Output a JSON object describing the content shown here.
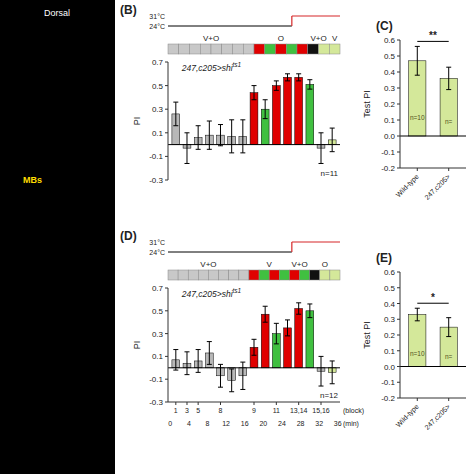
{
  "chart_data": [
    {
      "type": "bar",
      "title": "(B)",
      "ylabel": "PI",
      "categories": [
        null,
        null,
        null,
        null,
        null,
        null,
        null,
        null,
        null,
        null,
        null,
        null,
        null,
        null,
        null
      ],
      "values": [
        0.26,
        -0.03,
        0.06,
        0.08,
        0.08,
        0.07,
        0.07,
        0.44,
        0.3,
        0.5,
        0.57,
        0.57,
        0.51,
        -0.03,
        0.04
      ],
      "errors": [
        0.1,
        0.13,
        0.1,
        0.12,
        0.09,
        0.14,
        0.14,
        0.06,
        0.08,
        0.04,
        0.03,
        0.03,
        0.04,
        0.13,
        0.1
      ],
      "colors": [
        "#b8b8b8",
        "#b8b8b8",
        "#b8b8b8",
        "#b8b8b8",
        "#b8b8b8",
        "#b8b8b8",
        "#b8b8b8",
        "#e00000",
        "#40c040",
        "#e00000",
        "#e00000",
        "#e00000",
        "#40c040",
        "#b8b8b8",
        "#d4e89a"
      ],
      "ylim": [
        -0.3,
        0.7
      ],
      "yticks": [
        -0.3,
        -0.1,
        0.1,
        0.3,
        0.5,
        0.7
      ],
      "tick_labels": "y",
      "genotype": "247,c205>shi",
      "genotype_super": "ts1",
      "n_label": "n=11",
      "protocol": {
        "colors": [
          "#c8c8c8",
          "#c8c8c8",
          "#c8c8c8",
          "#c8c8c8",
          "#c8c8c8",
          "#c8c8c8",
          "#c8c8c8",
          "#c8c8c8",
          "#e00000",
          "#40c040",
          "#e00000",
          "#40c040",
          "#e00000",
          "#111111",
          "#d4e89a",
          "#d4e89a"
        ],
        "segments": [
          {
            "text": "V+O",
            "span": [
              0,
              8
            ]
          },
          {
            "text": "O",
            "span": [
              8,
              13
            ]
          },
          {
            "text": "V+O",
            "span": [
              13,
              15
            ]
          },
          {
            "text": "V",
            "span": [
              15,
              16
            ]
          }
        ]
      },
      "temperature": {
        "high": "31°C",
        "low": "24°C",
        "switch": 0.72
      }
    },
    {
      "type": "bar",
      "title": "(D)",
      "ylabel": "PI",
      "xlabel": "(block)",
      "categories": [
        "1",
        "3",
        "5",
        null,
        "8",
        null,
        null,
        "9",
        null,
        "11",
        null,
        "13,14",
        null,
        "15,16",
        null
      ],
      "values": [
        0.07,
        0.04,
        0.06,
        0.13,
        -0.07,
        -0.11,
        -0.07,
        0.18,
        0.47,
        0.3,
        0.35,
        0.52,
        0.5,
        -0.03,
        -0.04
      ],
      "errors": [
        0.09,
        0.1,
        0.1,
        0.1,
        0.1,
        0.1,
        0.12,
        0.07,
        0.07,
        0.09,
        0.07,
        0.05,
        0.06,
        0.13,
        0.1
      ],
      "colors": [
        "#b8b8b8",
        "#b8b8b8",
        "#b8b8b8",
        "#b8b8b8",
        "#b8b8b8",
        "#b8b8b8",
        "#b8b8b8",
        "#e00000",
        "#e00000",
        "#40c040",
        "#e00000",
        "#e00000",
        "#40c040",
        "#b8b8b8",
        "#d4e89a"
      ],
      "ylim": [
        -0.3,
        0.7
      ],
      "yticks": [
        -0.3,
        -0.1,
        0.1,
        0.3,
        0.5,
        0.7
      ],
      "x2label": "(min)",
      "x2lim": [
        0,
        36
      ],
      "x2ticks": [
        0,
        4,
        8,
        12,
        16,
        20,
        24,
        28,
        32,
        36
      ],
      "genotype": "247,c205>shi",
      "genotype_super": "ts1",
      "n_label": "n=12",
      "protocol": {
        "colors": [
          "#c8c8c8",
          "#c8c8c8",
          "#c8c8c8",
          "#c8c8c8",
          "#c8c8c8",
          "#c8c8c8",
          "#c8c8c8",
          "#c8c8c8",
          "#e00000",
          "#40c040",
          "#e00000",
          "#40c040",
          "#e00000",
          "#40c040",
          "#111111",
          "#d4e89a",
          "#d4e89a"
        ],
        "segments": [
          {
            "text": "V+O",
            "span": [
              0,
              8
            ]
          },
          {
            "text": "V",
            "span": [
              8,
              12
            ]
          },
          {
            "text": "V+O",
            "span": [
              12,
              14
            ]
          },
          {
            "text": "O",
            "span": [
              14,
              17
            ]
          }
        ]
      },
      "temperature": {
        "high": "31°C",
        "low": "24°C",
        "switch": 0.72
      }
    },
    {
      "type": "bar",
      "title": "(C)",
      "ylabel": "Test PI",
      "categories": [
        "Wild-type",
        "247,c205>"
      ],
      "values": [
        0.47,
        0.36
      ],
      "errors": [
        0.09,
        0.07
      ],
      "color": "#d4e89a",
      "n_labels": [
        "n=10",
        "n="
      ],
      "ylim": [
        -0.2,
        0.6
      ],
      "yticks": [
        -0.2,
        -0.1,
        {
          "value": 0,
          "label": "0.0"
        },
        0.1,
        0.2,
        0.3,
        0.4,
        0.5,
        0.6
      ],
      "annotations": [
        "**"
      ]
    },
    {
      "type": "bar",
      "title": "(E)",
      "ylabel": "Test PI",
      "categories": [
        "Wild-type",
        "247,c205>"
      ],
      "values": [
        0.33,
        0.25
      ],
      "errors": [
        0.04,
        0.06
      ],
      "color": "#d4e89a",
      "n_labels": [
        "n=10",
        "n="
      ],
      "ylim": [
        -0.2,
        0.6
      ],
      "yticks": [
        -0.2,
        -0.1,
        {
          "value": 0,
          "label": "0.0"
        },
        0.1,
        0.2,
        0.3,
        0.4,
        0.5,
        0.6
      ],
      "annotations": [
        "*"
      ]
    },
    {
      "type": "image",
      "annotations": [
        "Dorsal",
        "MBs"
      ]
    }
  ]
}
